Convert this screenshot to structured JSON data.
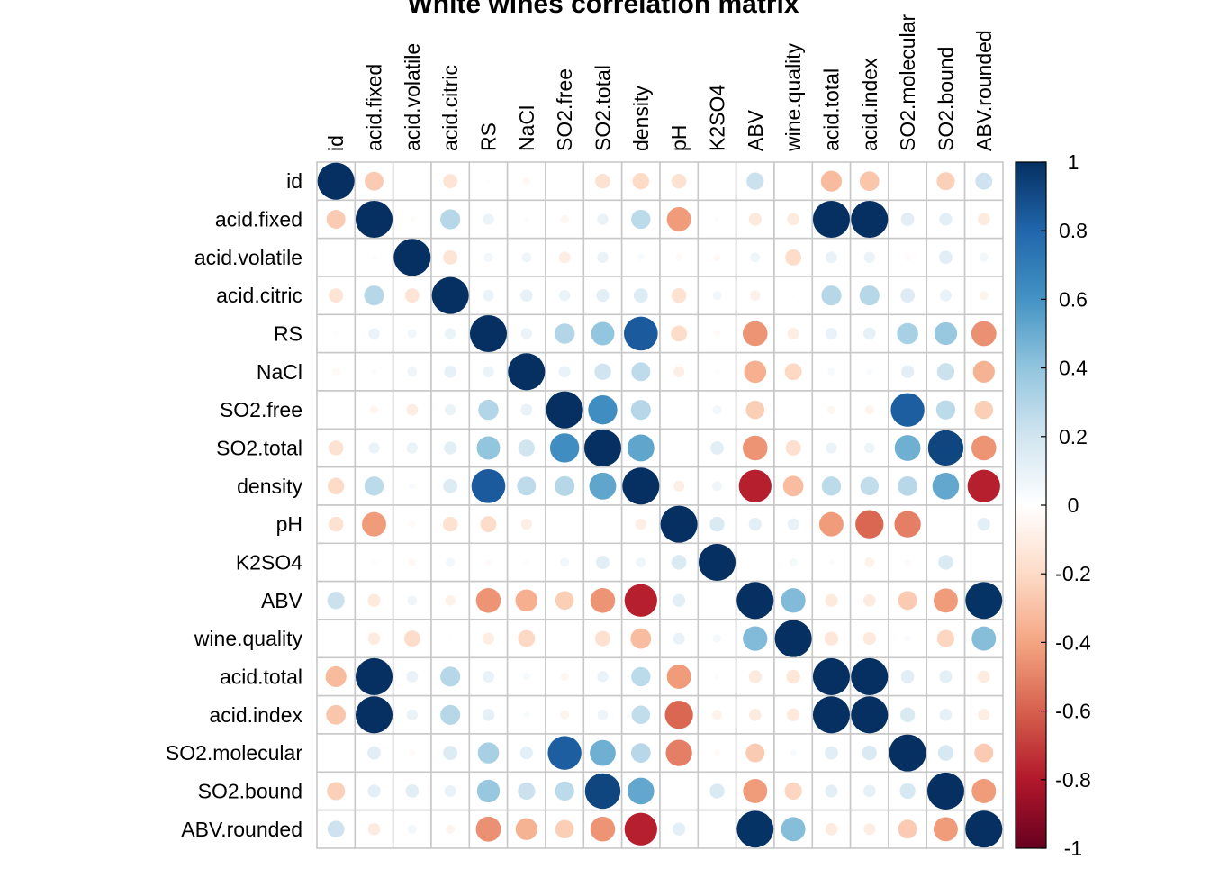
{
  "chart_data": {
    "type": "heatmap",
    "title": "White wines correlation matrix",
    "variables": [
      "id",
      "acid.fixed",
      "acid.volatile",
      "acid.citric",
      "RS",
      "NaCl",
      "SO2.free",
      "SO2.total",
      "density",
      "pH",
      "K2SO4",
      "ABV",
      "wine.quality",
      "acid.total",
      "acid.index",
      "SO2.molecular",
      "SO2.bound",
      "ABV.rounded"
    ],
    "matrix": [
      [
        1.0,
        -0.26,
        0.0,
        -0.15,
        -0.01,
        -0.04,
        0.0,
        -0.16,
        -0.2,
        -0.16,
        0.0,
        0.22,
        0.01,
        -0.32,
        -0.28,
        0.01,
        -0.24,
        0.21
      ],
      [
        -0.26,
        1.0,
        -0.02,
        0.29,
        0.09,
        0.02,
        -0.05,
        0.09,
        0.27,
        -0.43,
        0.02,
        -0.12,
        -0.11,
        1.0,
        1.0,
        0.13,
        0.12,
        -0.11
      ],
      [
        0.0,
        -0.02,
        1.0,
        -0.15,
        0.06,
        0.07,
        -0.1,
        0.09,
        0.03,
        -0.03,
        -0.04,
        0.07,
        -0.19,
        0.1,
        0.09,
        -0.03,
        0.13,
        0.06
      ],
      [
        -0.15,
        0.29,
        -0.15,
        1.0,
        0.09,
        0.11,
        0.09,
        0.12,
        0.15,
        -0.16,
        0.06,
        -0.08,
        -0.01,
        0.29,
        0.29,
        0.15,
        0.1,
        -0.06
      ],
      [
        -0.01,
        0.09,
        0.06,
        0.09,
        1.0,
        0.09,
        0.3,
        0.4,
        0.84,
        -0.19,
        -0.03,
        -0.45,
        -0.1,
        0.1,
        0.11,
        0.33,
        0.38,
        -0.46
      ],
      [
        -0.04,
        0.02,
        0.07,
        0.11,
        0.09,
        1.0,
        0.1,
        0.2,
        0.26,
        -0.09,
        0.02,
        -0.36,
        -0.21,
        0.04,
        0.03,
        0.12,
        0.22,
        -0.35
      ],
      [
        0.0,
        -0.05,
        -0.1,
        0.09,
        0.3,
        0.1,
        1.0,
        0.62,
        0.29,
        0.0,
        0.06,
        -0.25,
        0.01,
        -0.05,
        -0.06,
        0.83,
        0.27,
        -0.25
      ],
      [
        -0.16,
        0.09,
        0.09,
        0.12,
        0.4,
        0.2,
        0.62,
        1.0,
        0.53,
        0.0,
        0.13,
        -0.45,
        -0.17,
        0.09,
        0.08,
        0.49,
        0.92,
        -0.45
      ],
      [
        -0.2,
        0.27,
        0.03,
        0.15,
        0.84,
        0.26,
        0.29,
        0.53,
        1.0,
        -0.09,
        0.07,
        -0.78,
        -0.31,
        0.27,
        0.25,
        0.28,
        0.52,
        -0.78
      ],
      [
        -0.16,
        -0.43,
        -0.03,
        -0.16,
        -0.19,
        -0.09,
        0.0,
        0.0,
        -0.09,
        1.0,
        0.16,
        0.12,
        0.1,
        -0.43,
        -0.58,
        -0.51,
        0.0,
        0.12
      ],
      [
        0.0,
        0.02,
        -0.04,
        0.06,
        -0.03,
        0.02,
        0.06,
        0.13,
        0.07,
        0.16,
        1.0,
        0.0,
        0.05,
        0.02,
        -0.07,
        -0.03,
        0.16,
        0.0
      ],
      [
        0.22,
        -0.12,
        0.07,
        -0.08,
        -0.45,
        -0.36,
        -0.25,
        -0.45,
        -0.78,
        0.12,
        0.0,
        1.0,
        0.44,
        -0.12,
        -0.11,
        -0.26,
        -0.43,
        0.99
      ],
      [
        0.01,
        -0.11,
        -0.19,
        -0.01,
        -0.1,
        -0.21,
        0.01,
        -0.17,
        -0.31,
        0.1,
        0.05,
        0.44,
        1.0,
        -0.14,
        -0.12,
        0.03,
        -0.22,
        0.43
      ],
      [
        -0.32,
        1.0,
        0.1,
        0.29,
        0.1,
        0.04,
        -0.05,
        0.09,
        0.27,
        -0.43,
        0.02,
        -0.12,
        -0.14,
        1.0,
        1.0,
        0.13,
        0.12,
        -0.11
      ],
      [
        -0.28,
        1.0,
        0.09,
        0.29,
        0.11,
        0.03,
        -0.06,
        0.08,
        0.25,
        -0.58,
        -0.07,
        -0.11,
        -0.12,
        1.0,
        1.0,
        0.16,
        0.11,
        -0.1
      ],
      [
        0.01,
        0.13,
        -0.03,
        0.15,
        0.33,
        0.12,
        0.83,
        0.49,
        0.28,
        -0.51,
        -0.03,
        -0.26,
        0.03,
        0.13,
        0.16,
        1.0,
        0.18,
        -0.26
      ],
      [
        -0.24,
        0.12,
        0.13,
        0.1,
        0.38,
        0.22,
        0.27,
        0.92,
        0.52,
        0.0,
        0.16,
        -0.43,
        -0.22,
        0.12,
        0.11,
        0.18,
        1.0,
        -0.43
      ],
      [
        0.21,
        -0.11,
        0.06,
        -0.06,
        -0.46,
        -0.35,
        -0.25,
        -0.45,
        -0.78,
        0.12,
        0.0,
        0.99,
        0.43,
        -0.11,
        -0.1,
        -0.26,
        -0.43,
        1.0
      ]
    ],
    "colorbar_ticks": [
      "1",
      "0.8",
      "0.6",
      "0.4",
      "0.2",
      "0",
      "-0.2",
      "-0.4",
      "-0.6",
      "-0.8",
      "-1"
    ],
    "range": [
      -1,
      1
    ],
    "colors": [
      "#67001F",
      "#B2182B",
      "#D6604D",
      "#F4A582",
      "#FDDBC7",
      "#FFFFFF",
      "#D1E5F0",
      "#92C5DE",
      "#4393C3",
      "#2166AC",
      "#053061"
    ]
  }
}
